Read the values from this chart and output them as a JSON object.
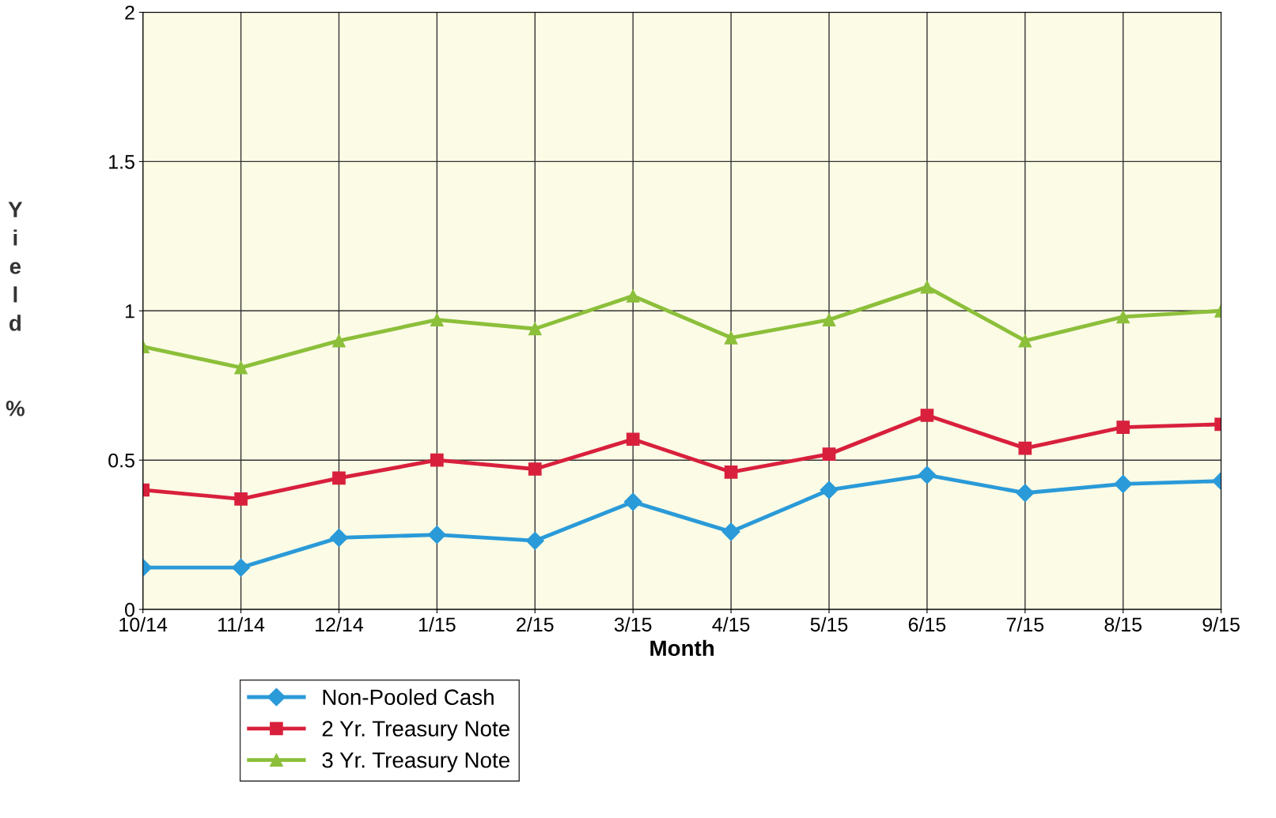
{
  "chart_data": {
    "type": "line",
    "xlabel": "Month",
    "ylabel": "Yield %",
    "categories": [
      "10/14",
      "11/14",
      "12/14",
      "1/15",
      "2/15",
      "3/15",
      "4/15",
      "5/15",
      "6/15",
      "7/15",
      "8/15",
      "9/15"
    ],
    "ylim": [
      0,
      2
    ],
    "yticks": [
      0,
      0.5,
      1,
      1.5,
      2
    ],
    "grid": true,
    "legend": "bottom left",
    "series": [
      {
        "name": "Non-Pooled Cash",
        "color": "#2a9ad8",
        "marker": "diamond",
        "values": [
          0.14,
          0.14,
          0.24,
          0.25,
          0.23,
          0.36,
          0.26,
          0.4,
          0.45,
          0.39,
          0.42,
          0.43
        ]
      },
      {
        "name": "2 Yr. Treasury Note",
        "color": "#d8203c",
        "marker": "square",
        "values": [
          0.4,
          0.37,
          0.44,
          0.5,
          0.47,
          0.57,
          0.46,
          0.52,
          0.65,
          0.54,
          0.61,
          0.62
        ]
      },
      {
        "name": "3 Yr. Treasury Note",
        "color": "#8cbf3a",
        "marker": "triangle",
        "values": [
          0.88,
          0.81,
          0.9,
          0.97,
          0.94,
          1.05,
          0.91,
          0.97,
          1.08,
          0.9,
          0.98,
          1.0
        ]
      }
    ]
  }
}
